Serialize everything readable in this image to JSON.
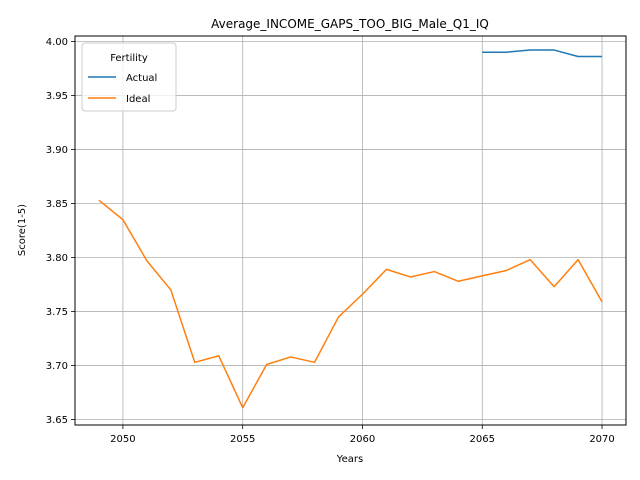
{
  "chart_data": {
    "type": "line",
    "title": "Average_INCOME_GAPS_TOO_BIG_Male_Q1_IQ",
    "xlabel": "Years",
    "ylabel": "Score(1-5)",
    "xlim": [
      2048,
      2071
    ],
    "ylim": [
      3.645,
      4.005
    ],
    "x_ticks": [
      2050,
      2055,
      2060,
      2065,
      2070
    ],
    "y_ticks": [
      "3.65",
      "3.70",
      "3.75",
      "3.80",
      "3.85",
      "3.90",
      "3.95",
      "4.00"
    ],
    "grid": true,
    "legend": {
      "title": "Fertility",
      "placement": "top-left"
    },
    "series": [
      {
        "name": "Actual",
        "color": "#1f77b4",
        "x": [
          2065,
          2066,
          2067,
          2068,
          2069,
          2070
        ],
        "values": [
          3.99,
          3.99,
          3.992,
          3.992,
          3.986,
          3.986
        ]
      },
      {
        "name": "Ideal",
        "color": "#ff7f0e",
        "x": [
          2049,
          2050,
          2051,
          2052,
          2053,
          2054,
          2055,
          2056,
          2057,
          2058,
          2059,
          2060,
          2061,
          2062,
          2063,
          2064,
          2065,
          2066,
          2067,
          2068,
          2069,
          2070
        ],
        "values": [
          3.853,
          3.835,
          3.797,
          3.77,
          3.703,
          3.709,
          3.661,
          3.701,
          3.708,
          3.703,
          3.745,
          3.766,
          3.789,
          3.782,
          3.787,
          3.778,
          3.783,
          3.788,
          3.798,
          3.773,
          3.798,
          3.759
        ]
      }
    ]
  }
}
